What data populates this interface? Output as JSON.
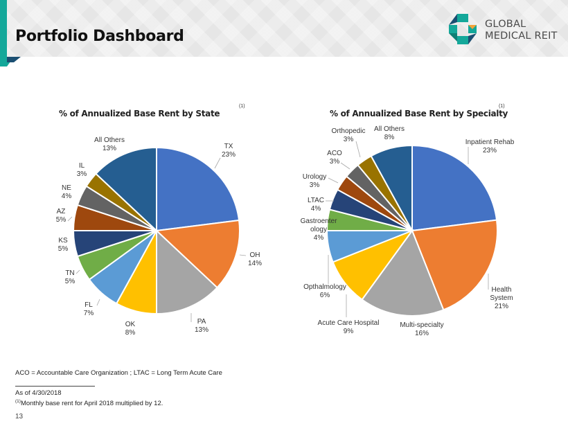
{
  "header": {
    "title": "Portfolio Dashboard",
    "logo_text_line1": "GLOBAL",
    "logo_text_line2": "MEDICAL REIT"
  },
  "colors": {
    "accent": "#14a89a",
    "accent_dark": "#1b4f72"
  },
  "chart_data": [
    {
      "type": "pie",
      "title": "% of Annualized Base Rent by State",
      "title_superscript": "(1)",
      "categories": [
        "TX",
        "OH",
        "PA",
        "OK",
        "FL",
        "TN",
        "KS",
        "AZ",
        "NE",
        "IL",
        "All Others"
      ],
      "values": [
        23,
        14,
        13,
        8,
        7,
        5,
        5,
        5,
        4,
        3,
        13
      ],
      "labels": [
        "23%",
        "14%",
        "13%",
        "8%",
        "7%",
        "5%",
        "5%",
        "5%",
        "4%",
        "3%",
        "13%"
      ],
      "colors": [
        "#4472c4",
        "#ed7d31",
        "#a5a5a5",
        "#ffc000",
        "#5b9bd5",
        "#70ad47",
        "#264478",
        "#9e480e",
        "#636363",
        "#997300",
        "#255e91"
      ]
    },
    {
      "type": "pie",
      "title": "% of Annualized Base Rent by Specialty",
      "title_superscript": "(1)",
      "categories": [
        "Inpatient Rehab",
        "Health System",
        "Multi-specialty",
        "Acute Care Hospital",
        "Opthalmology",
        "Gastroenterology",
        "LTAC",
        "Urology",
        "ACO",
        "Orthopedic",
        "All Others"
      ],
      "display_names": [
        [
          "Inpatient Rehab"
        ],
        [
          "Health",
          "System"
        ],
        [
          "Multi-specialty"
        ],
        [
          "Acute Care Hospital"
        ],
        [
          "Opthalmology"
        ],
        [
          "Gastroenter",
          "ology"
        ],
        [
          "LTAC"
        ],
        [
          "Urology"
        ],
        [
          "ACO"
        ],
        [
          "Orthopedic"
        ],
        [
          "All Others"
        ]
      ],
      "values": [
        23,
        21,
        16,
        9,
        6,
        4,
        4,
        3,
        3,
        3,
        8
      ],
      "labels": [
        "23%",
        "21%",
        "16%",
        "9%",
        "6%",
        "4%",
        "4%",
        "3%",
        "3%",
        "3%",
        "8%"
      ],
      "colors": [
        "#4472c4",
        "#ed7d31",
        "#a5a5a5",
        "#ffc000",
        "#5b9bd5",
        "#70ad47",
        "#264478",
        "#9e480e",
        "#636363",
        "#997300",
        "#255e91"
      ]
    }
  ],
  "footer": {
    "abbrev_note": "ACO = Accountable Care Organization ; LTAC = Long Term  Acute Care",
    "as_of": "As of 4/30/2018",
    "footnote_marker": "(1)",
    "footnote_text": "Monthly base rent for April 2018 multiplied by 12.",
    "page_number": "13"
  }
}
